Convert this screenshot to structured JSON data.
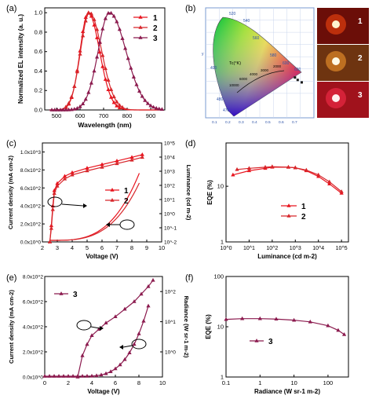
{
  "chart_data": [
    {
      "panel": "(a)",
      "type": "line",
      "xlabel": "Wavelength (nm)",
      "ylabel": "Normalized EL intensity (a. u.)",
      "xlim": [
        450,
        960
      ],
      "ylim": [
        0,
        1.05
      ],
      "xticks": [
        "500",
        "600",
        "700",
        "800",
        "900"
      ],
      "yticks": [
        "0.0",
        "0.2",
        "0.4",
        "0.6",
        "0.8",
        "1.0"
      ],
      "legend_position": "top-right",
      "series": [
        {
          "name": "1",
          "color": "#e8141e",
          "peak": 635,
          "sigL": 35,
          "sigR": 48,
          "x": [
            480,
            520,
            560,
            580,
            600,
            620,
            635,
            650,
            670,
            700,
            730,
            760,
            800,
            850
          ],
          "y": [
            0.0,
            0.02,
            0.18,
            0.4,
            0.72,
            0.96,
            1.0,
            0.94,
            0.74,
            0.4,
            0.15,
            0.05,
            0.01,
            0.0
          ]
        },
        {
          "name": "2",
          "color": "#d7262b",
          "peak": 640,
          "sigL": 38,
          "sigR": 52,
          "x": [
            480,
            520,
            560,
            580,
            600,
            620,
            640,
            660,
            680,
            710,
            740,
            770,
            810,
            860
          ],
          "y": [
            0.0,
            0.03,
            0.2,
            0.42,
            0.7,
            0.92,
            1.0,
            0.93,
            0.78,
            0.48,
            0.22,
            0.08,
            0.02,
            0.0
          ]
        },
        {
          "name": "3",
          "color": "#8b1a4e",
          "peak": 725,
          "sigL": 48,
          "sigR": 70,
          "x": [
            500,
            560,
            600,
            640,
            670,
            700,
            725,
            750,
            780,
            820,
            860,
            900,
            940,
            960
          ],
          "y": [
            0.0,
            0.03,
            0.1,
            0.3,
            0.56,
            0.86,
            1.0,
            0.96,
            0.82,
            0.56,
            0.3,
            0.13,
            0.05,
            0.03
          ]
        }
      ]
    },
    {
      "panel": "(b)",
      "type": "scatter",
      "note_labels": [
        "1",
        "2",
        "3"
      ],
      "axis_ticks_x": [
        "0.1",
        "0.2",
        "0.3",
        "0.4",
        "0.5",
        "0.6",
        "0.7"
      ],
      "wavelength_labels": [
        "520",
        "540",
        "560",
        "580",
        "600",
        "620",
        "490",
        "480",
        "470"
      ],
      "planckian_label": "Tc(°K)",
      "cct_labels": [
        "10000",
        "6000",
        "4000",
        "3000",
        "2000"
      ],
      "points": [
        {
          "x": 0.66,
          "y": 0.33
        },
        {
          "x": 0.68,
          "y": 0.31
        },
        {
          "x": 0.71,
          "y": 0.29
        }
      ]
    },
    {
      "panel": "(c)",
      "type": "line",
      "xlabel": "Voltage (V)",
      "ylabel": "Current density (mA cm-2)",
      "y2label": "Luminance (cd m-2)",
      "xlim": [
        2,
        10
      ],
      "ylim": [
        0,
        1100
      ],
      "xticks": [
        "2",
        "3",
        "4",
        "5",
        "6",
        "7",
        "8",
        "9",
        "10"
      ],
      "yticks": [
        "0.0x10^0",
        "2.0x10^2",
        "4.0x10^2",
        "6.0x10^2",
        "8.0x10^2",
        "1.0x10^3"
      ],
      "y2ticks": [
        "10^-2",
        "10^-1",
        "10^0",
        "10^1",
        "10^2",
        "10^3",
        "10^4",
        "10^5"
      ],
      "legend_position": "center",
      "series": [
        {
          "name": "1",
          "color": "#e8141e",
          "x": [
            2.5,
            2.6,
            2.7,
            2.8,
            3.0,
            3.5,
            4.0,
            5.0,
            6.0,
            7.0,
            8.0,
            8.7
          ],
          "y": [
            0,
            180,
            400,
            570,
            650,
            730,
            770,
            820,
            860,
            900,
            940,
            970
          ]
        },
        {
          "name": "2",
          "color": "#d7262b",
          "x": [
            2.5,
            2.6,
            2.7,
            2.8,
            3.0,
            3.5,
            4.0,
            5.0,
            6.0,
            7.0,
            8.0,
            8.7
          ],
          "y": [
            0,
            150,
            360,
            540,
            620,
            700,
            745,
            790,
            830,
            870,
            910,
            940
          ]
        }
      ]
    },
    {
      "panel": "(d)",
      "type": "line",
      "xlabel": "Luminance (cd m-2)",
      "ylabel": "EQE (%)",
      "xscale": "log",
      "yscale": "log",
      "xlim": [
        1,
        200000
      ],
      "ylim": [
        1,
        60
      ],
      "xticks": [
        "10^0",
        "10^1",
        "10^2",
        "10^3",
        "10^4",
        "10^5"
      ],
      "yticks": [
        "1",
        "10"
      ],
      "legend_position": "center",
      "series": [
        {
          "name": "1",
          "color": "#e8141e",
          "x": [
            2,
            10,
            50,
            100,
            500,
            1000,
            3000,
            10000,
            30000,
            100000
          ],
          "y": [
            16,
            19,
            21,
            22,
            22,
            21.5,
            19,
            15,
            11,
            7.5
          ]
        },
        {
          "name": "2",
          "color": "#d7262b",
          "x": [
            3,
            10,
            50,
            100,
            500,
            1000,
            3000,
            10000,
            30000,
            100000
          ],
          "y": [
            20,
            21,
            22,
            22.5,
            22,
            21.5,
            19.5,
            16,
            12,
            8
          ]
        }
      ]
    },
    {
      "panel": "(e)",
      "type": "line",
      "xlabel": "Voltage (V)",
      "ylabel": "Current density (mA cm-2)",
      "y2label": "Radiance (W sr-1 m-2)",
      "xlim": [
        0,
        10
      ],
      "ylim": [
        0,
        800
      ],
      "xticks": [
        "0",
        "2",
        "4",
        "6",
        "8",
        "10"
      ],
      "yticks": [
        "0.0x10^0",
        "2.0x10^2",
        "4.0x10^2",
        "6.0x10^2",
        "8.0x10^2"
      ],
      "y2ticks": [
        "10^0",
        "10^1",
        "10^2"
      ],
      "legend_position": "top-left",
      "series": [
        {
          "name": "3",
          "color": "#8b1a4e",
          "x": [
            2.8,
            3.2,
            3.6,
            4.0,
            4.6,
            5.2,
            6.0,
            6.8,
            7.6,
            8.2,
            8.8,
            9.2
          ],
          "y": [
            0,
            170,
            260,
            330,
            380,
            430,
            480,
            540,
            600,
            660,
            720,
            770
          ]
        }
      ]
    },
    {
      "panel": "(f)",
      "type": "line",
      "xlabel": "Radiance (W sr-1 m-2)",
      "ylabel": "EQE (%)",
      "xscale": "log",
      "yscale": "log",
      "xlim": [
        0.1,
        400
      ],
      "ylim": [
        1,
        100
      ],
      "xticks": [
        "0.1",
        "1",
        "10",
        "100"
      ],
      "yticks": [
        "1",
        "10",
        "100"
      ],
      "legend_position": "center-left",
      "series": [
        {
          "name": "3",
          "color": "#8b1a4e",
          "x": [
            0.1,
            0.3,
            1,
            3,
            10,
            30,
            100,
            200,
            300
          ],
          "y": [
            14,
            14.5,
            14.5,
            14.2,
            13.5,
            12.5,
            10.5,
            8.5,
            7
          ]
        }
      ]
    }
  ],
  "panel_letters": [
    "(a)",
    "(b)",
    "(c)",
    "(d)",
    "(e)",
    "(f)"
  ],
  "photo_labels": [
    "1",
    "2",
    "3"
  ]
}
